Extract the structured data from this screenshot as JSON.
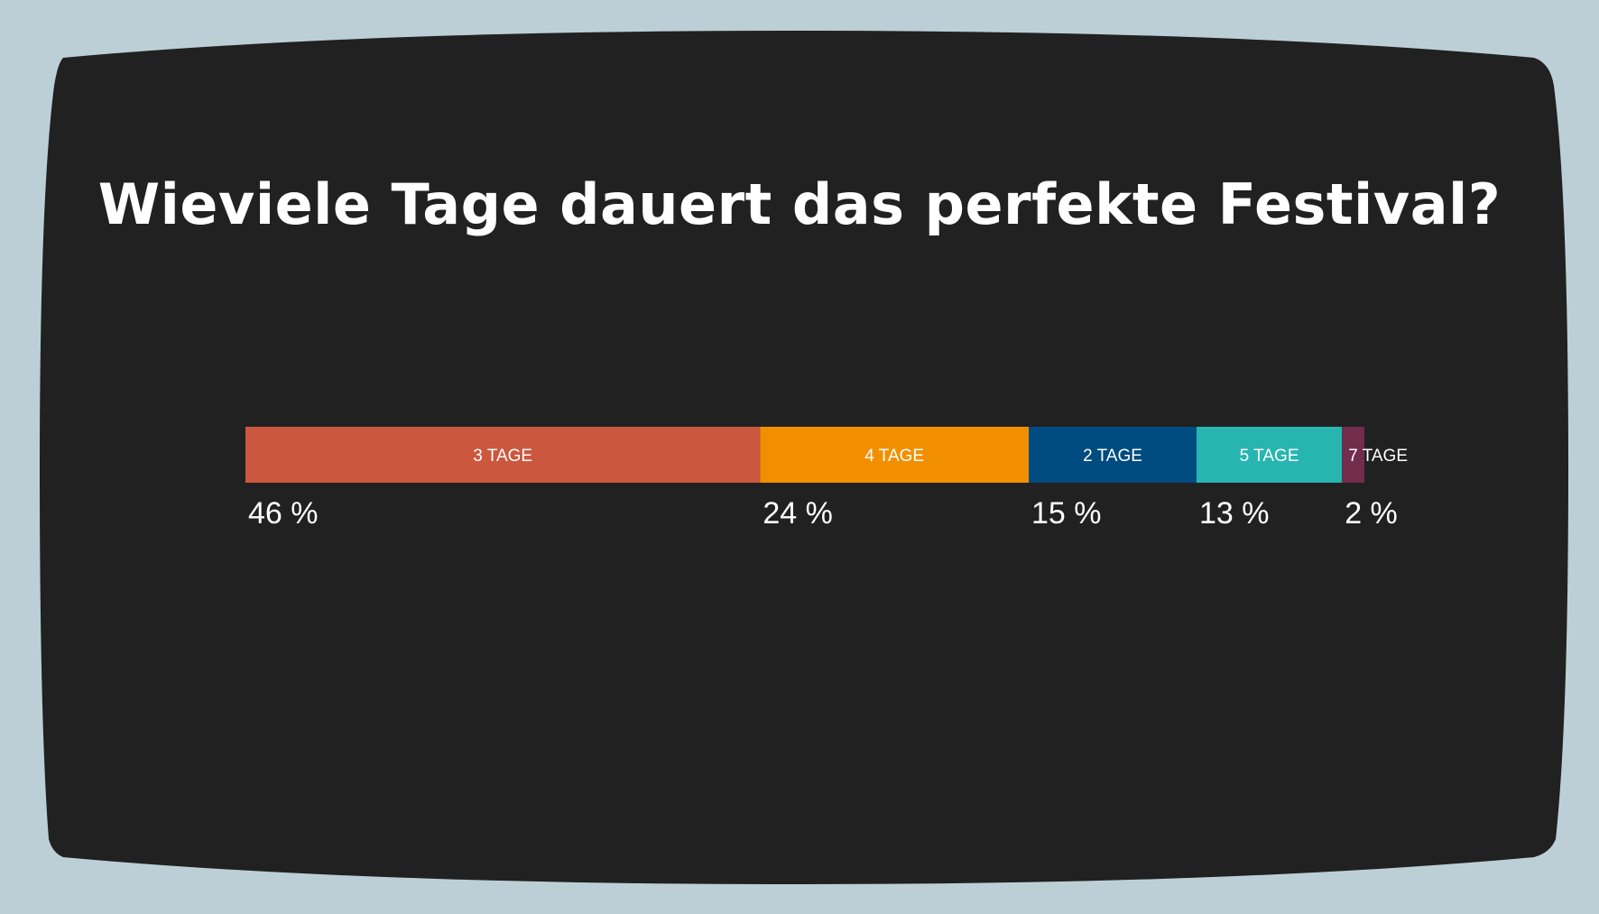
{
  "colors": {
    "page_background": "#bccfd6",
    "screen": "#212121",
    "text": "#ffffff"
  },
  "chart_data": {
    "type": "bar",
    "orientation": "horizontal-stacked",
    "title": "Wieviele Tage dauert das perfekte Festival?",
    "xlabel": "",
    "ylabel": "",
    "unit": "%",
    "total": 100,
    "grid": false,
    "legend": "none",
    "categories": [
      "3 TAGE",
      "4 TAGE",
      "2 TAGE",
      "5 TAGE",
      "7 TAGE"
    ],
    "values": [
      46,
      24,
      15,
      13,
      2
    ],
    "value_labels": [
      "46 %",
      "24 %",
      "15 %",
      "13 %",
      "2 %"
    ],
    "colors": [
      "#cb583e",
      "#f28f00",
      "#004b7f",
      "#27b5b0",
      "#722c4c"
    ]
  }
}
